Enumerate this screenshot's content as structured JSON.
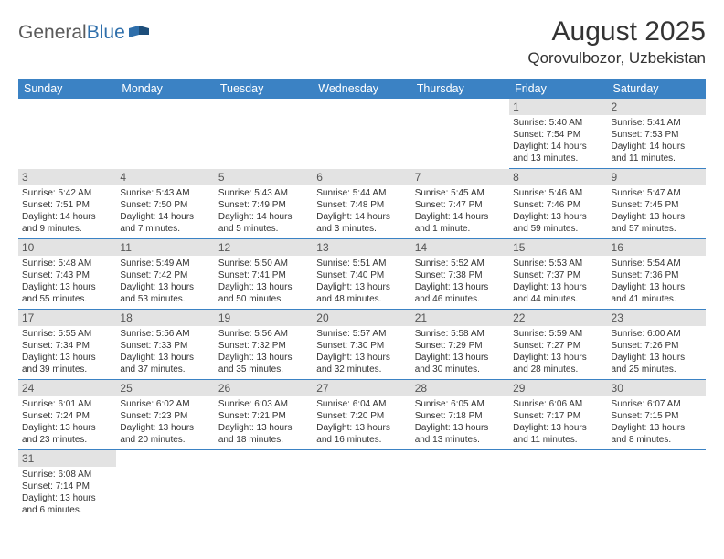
{
  "brand": {
    "part1": "General",
    "part2": "Blue"
  },
  "header": {
    "month_title": "August 2025",
    "location": "Qorovulbozor, Uzbekistan"
  },
  "colors": {
    "header_bg": "#3b82c4",
    "header_text": "#ffffff",
    "daynum_bg": "#e3e3e3",
    "border": "#3b82c4",
    "logo_gray": "#5a5a5a",
    "logo_blue": "#2f6fab"
  },
  "weekdays": [
    "Sunday",
    "Monday",
    "Tuesday",
    "Wednesday",
    "Thursday",
    "Friday",
    "Saturday"
  ],
  "weeks": [
    [
      null,
      null,
      null,
      null,
      null,
      {
        "day": "1",
        "text": "Sunrise: 5:40 AM\nSunset: 7:54 PM\nDaylight: 14 hours\nand 13 minutes."
      },
      {
        "day": "2",
        "text": "Sunrise: 5:41 AM\nSunset: 7:53 PM\nDaylight: 14 hours\nand 11 minutes."
      }
    ],
    [
      {
        "day": "3",
        "text": "Sunrise: 5:42 AM\nSunset: 7:51 PM\nDaylight: 14 hours\nand 9 minutes."
      },
      {
        "day": "4",
        "text": "Sunrise: 5:43 AM\nSunset: 7:50 PM\nDaylight: 14 hours\nand 7 minutes."
      },
      {
        "day": "5",
        "text": "Sunrise: 5:43 AM\nSunset: 7:49 PM\nDaylight: 14 hours\nand 5 minutes."
      },
      {
        "day": "6",
        "text": "Sunrise: 5:44 AM\nSunset: 7:48 PM\nDaylight: 14 hours\nand 3 minutes."
      },
      {
        "day": "7",
        "text": "Sunrise: 5:45 AM\nSunset: 7:47 PM\nDaylight: 14 hours\nand 1 minute."
      },
      {
        "day": "8",
        "text": "Sunrise: 5:46 AM\nSunset: 7:46 PM\nDaylight: 13 hours\nand 59 minutes."
      },
      {
        "day": "9",
        "text": "Sunrise: 5:47 AM\nSunset: 7:45 PM\nDaylight: 13 hours\nand 57 minutes."
      }
    ],
    [
      {
        "day": "10",
        "text": "Sunrise: 5:48 AM\nSunset: 7:43 PM\nDaylight: 13 hours\nand 55 minutes."
      },
      {
        "day": "11",
        "text": "Sunrise: 5:49 AM\nSunset: 7:42 PM\nDaylight: 13 hours\nand 53 minutes."
      },
      {
        "day": "12",
        "text": "Sunrise: 5:50 AM\nSunset: 7:41 PM\nDaylight: 13 hours\nand 50 minutes."
      },
      {
        "day": "13",
        "text": "Sunrise: 5:51 AM\nSunset: 7:40 PM\nDaylight: 13 hours\nand 48 minutes."
      },
      {
        "day": "14",
        "text": "Sunrise: 5:52 AM\nSunset: 7:38 PM\nDaylight: 13 hours\nand 46 minutes."
      },
      {
        "day": "15",
        "text": "Sunrise: 5:53 AM\nSunset: 7:37 PM\nDaylight: 13 hours\nand 44 minutes."
      },
      {
        "day": "16",
        "text": "Sunrise: 5:54 AM\nSunset: 7:36 PM\nDaylight: 13 hours\nand 41 minutes."
      }
    ],
    [
      {
        "day": "17",
        "text": "Sunrise: 5:55 AM\nSunset: 7:34 PM\nDaylight: 13 hours\nand 39 minutes."
      },
      {
        "day": "18",
        "text": "Sunrise: 5:56 AM\nSunset: 7:33 PM\nDaylight: 13 hours\nand 37 minutes."
      },
      {
        "day": "19",
        "text": "Sunrise: 5:56 AM\nSunset: 7:32 PM\nDaylight: 13 hours\nand 35 minutes."
      },
      {
        "day": "20",
        "text": "Sunrise: 5:57 AM\nSunset: 7:30 PM\nDaylight: 13 hours\nand 32 minutes."
      },
      {
        "day": "21",
        "text": "Sunrise: 5:58 AM\nSunset: 7:29 PM\nDaylight: 13 hours\nand 30 minutes."
      },
      {
        "day": "22",
        "text": "Sunrise: 5:59 AM\nSunset: 7:27 PM\nDaylight: 13 hours\nand 28 minutes."
      },
      {
        "day": "23",
        "text": "Sunrise: 6:00 AM\nSunset: 7:26 PM\nDaylight: 13 hours\nand 25 minutes."
      }
    ],
    [
      {
        "day": "24",
        "text": "Sunrise: 6:01 AM\nSunset: 7:24 PM\nDaylight: 13 hours\nand 23 minutes."
      },
      {
        "day": "25",
        "text": "Sunrise: 6:02 AM\nSunset: 7:23 PM\nDaylight: 13 hours\nand 20 minutes."
      },
      {
        "day": "26",
        "text": "Sunrise: 6:03 AM\nSunset: 7:21 PM\nDaylight: 13 hours\nand 18 minutes."
      },
      {
        "day": "27",
        "text": "Sunrise: 6:04 AM\nSunset: 7:20 PM\nDaylight: 13 hours\nand 16 minutes."
      },
      {
        "day": "28",
        "text": "Sunrise: 6:05 AM\nSunset: 7:18 PM\nDaylight: 13 hours\nand 13 minutes."
      },
      {
        "day": "29",
        "text": "Sunrise: 6:06 AM\nSunset: 7:17 PM\nDaylight: 13 hours\nand 11 minutes."
      },
      {
        "day": "30",
        "text": "Sunrise: 6:07 AM\nSunset: 7:15 PM\nDaylight: 13 hours\nand 8 minutes."
      }
    ],
    [
      {
        "day": "31",
        "text": "Sunrise: 6:08 AM\nSunset: 7:14 PM\nDaylight: 13 hours\nand 6 minutes."
      },
      null,
      null,
      null,
      null,
      null,
      null
    ]
  ]
}
